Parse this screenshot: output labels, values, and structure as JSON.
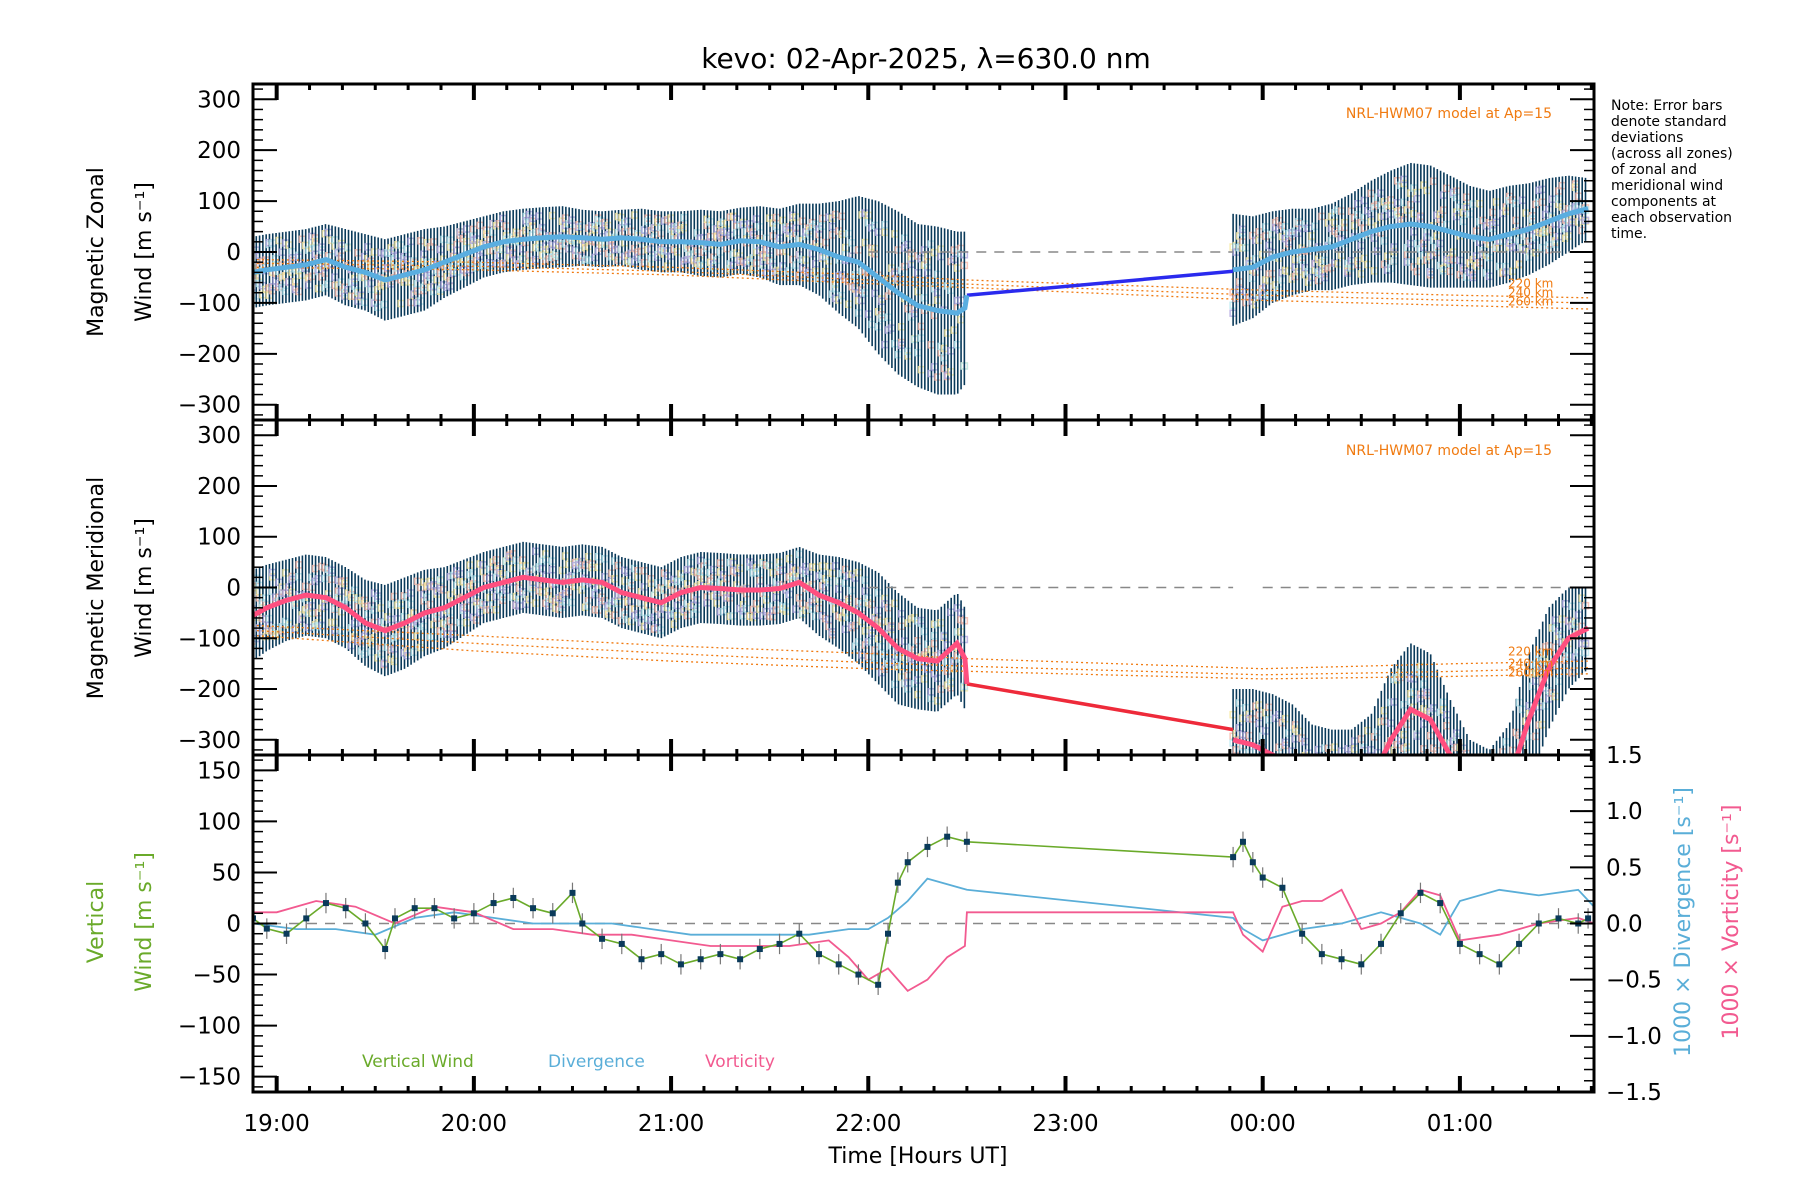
{
  "chart_data": {
    "type": "line",
    "title": "kevo: 02-Apr-2025, λ=630.0 nm",
    "xlabel": "Time [Hours UT]",
    "x_ticks": [
      "19:00",
      "20:00",
      "21:00",
      "22:00",
      "23:00",
      "00:00",
      "01:00"
    ],
    "x_tick_hours": [
      19,
      20,
      21,
      22,
      23,
      24,
      25
    ],
    "xlim_hours": [
      18.88,
      25.68
    ],
    "note": [
      "Note: Error bars",
      "denote standard",
      "deviations",
      "(across all zones)",
      "of zonal and",
      "meridional wind",
      "components at",
      "each observation",
      "time."
    ],
    "colors": {
      "zonal_line": "#5aaee0",
      "zonal_gap_line": "#2a2aee",
      "meridional_line": "#ff4f7f",
      "meridional_gap_line": "#ee2a3a",
      "error_bar": "#0a3a5a",
      "model": "#f07a10",
      "vertical_wind": "#6aaa2a",
      "divergence": "#5aaed8",
      "vorticity": "#f25a90",
      "zero_line": "#888888",
      "scatter_purple": "#b0a8e0",
      "scatter_pink": "#f8b8a8",
      "scatter_yellow": "#f8e8a0"
    },
    "panels": [
      {
        "name": "zonal",
        "ylabel_line1": "Magnetic Zonal",
        "ylabel_line2": "Wind [m s⁻¹]",
        "ylim": [
          -330,
          330
        ],
        "yticks": [
          300,
          200,
          100,
          0,
          -100,
          -200,
          -300
        ],
        "ytick_labels": [
          "300",
          "200",
          "100",
          "0",
          "−100",
          "−200",
          "−300"
        ],
        "model_label": "NRL-HWM07 model at Ap=15",
        "model_altitudes": [
          "220 km",
          "240 km",
          "260 km"
        ],
        "model_series": [
          {
            "label": "220 km",
            "x": [
              18.9,
              20.0,
              21.0,
              22.0,
              22.5,
              24.0,
              25.0,
              25.65
            ],
            "y": [
              -15,
              -20,
              -30,
              -45,
              -55,
              -75,
              -85,
              -90
            ]
          },
          {
            "label": "240 km",
            "x": [
              18.9,
              20.0,
              21.0,
              22.0,
              22.5,
              24.0,
              25.0,
              25.65
            ],
            "y": [
              -22,
              -28,
              -38,
              -55,
              -63,
              -85,
              -95,
              -100
            ]
          },
          {
            "label": "260 km",
            "x": [
              18.9,
              20.0,
              21.0,
              22.0,
              22.5,
              24.0,
              25.0,
              25.65
            ],
            "y": [
              -30,
              -35,
              -45,
              -62,
              -70,
              -95,
              -105,
              -112
            ]
          }
        ],
        "series": {
          "name": "Zonal wind",
          "x": [
            18.88,
            18.95,
            19.05,
            19.15,
            19.25,
            19.35,
            19.45,
            19.55,
            19.65,
            19.75,
            19.85,
            19.95,
            20.05,
            20.15,
            20.25,
            20.35,
            20.45,
            20.55,
            20.65,
            20.75,
            20.85,
            20.95,
            21.05,
            21.15,
            21.25,
            21.35,
            21.45,
            21.55,
            21.65,
            21.75,
            21.85,
            21.95,
            22.05,
            22.15,
            22.25,
            22.35,
            22.45,
            22.49,
            22.5
          ],
          "y": [
            -40,
            -35,
            -30,
            -25,
            -15,
            -30,
            -40,
            -55,
            -45,
            -35,
            -20,
            -5,
            10,
            20,
            25,
            28,
            30,
            28,
            25,
            28,
            25,
            20,
            20,
            18,
            15,
            22,
            20,
            10,
            15,
            5,
            -10,
            -20,
            -50,
            -80,
            -105,
            -115,
            -120,
            -110,
            -85
          ],
          "err": [
            70,
            70,
            70,
            70,
            70,
            75,
            75,
            80,
            80,
            80,
            70,
            65,
            60,
            60,
            60,
            60,
            60,
            55,
            55,
            55,
            60,
            60,
            60,
            65,
            65,
            65,
            70,
            75,
            80,
            90,
            110,
            130,
            150,
            160,
            160,
            165,
            160,
            150,
            140
          ]
        },
        "series_b": {
          "x": [
            23.85,
            23.95,
            24.05,
            24.15,
            24.25,
            24.35,
            24.45,
            24.55,
            24.65,
            24.75,
            24.85,
            24.95,
            25.05,
            25.15,
            25.25,
            25.35,
            25.45,
            25.55,
            25.65
          ],
          "y": [
            -35,
            -30,
            -10,
            0,
            5,
            10,
            25,
            40,
            50,
            55,
            50,
            40,
            30,
            25,
            35,
            45,
            60,
            75,
            85
          ],
          "err": [
            110,
            100,
            90,
            85,
            80,
            85,
            90,
            100,
            110,
            120,
            120,
            110,
            100,
            95,
            95,
            90,
            85,
            75,
            60
          ]
        },
        "gap_line": {
          "x": [
            22.5,
            23.85
          ],
          "y": [
            -85,
            -38
          ]
        }
      },
      {
        "name": "meridional",
        "ylabel_line1": "Magnetic Meridional",
        "ylabel_line2": "Wind [m s⁻¹]",
        "ylim": [
          -330,
          330
        ],
        "yticks": [
          300,
          200,
          100,
          0,
          -100,
          -200,
          -300
        ],
        "ytick_labels": [
          "300",
          "200",
          "100",
          "0",
          "−100",
          "−200",
          "−300"
        ],
        "model_label": "NRL-HWM07 model at Ap=15",
        "model_altitudes": [
          "220 km",
          "240 km",
          "260 km"
        ],
        "model_series": [
          {
            "label": "220 km",
            "x": [
              18.9,
              20.0,
              21.0,
              22.0,
              22.5,
              24.0,
              25.0,
              25.65
            ],
            "y": [
              -75,
              -95,
              -115,
              -130,
              -140,
              -160,
              -150,
              -145
            ]
          },
          {
            "label": "240 km",
            "x": [
              18.9,
              20.0,
              21.0,
              22.0,
              22.5,
              24.0,
              25.0,
              25.65
            ],
            "y": [
              -85,
              -110,
              -130,
              -148,
              -155,
              -172,
              -165,
              -158
            ]
          },
          {
            "label": "260 km",
            "x": [
              18.9,
              20.0,
              21.0,
              22.0,
              22.5,
              24.0,
              25.0,
              25.65
            ],
            "y": [
              -95,
              -125,
              -145,
              -160,
              -165,
              -180,
              -175,
              -170
            ]
          }
        ],
        "series": {
          "name": "Meridional wind",
          "x": [
            18.88,
            18.95,
            19.05,
            19.15,
            19.25,
            19.35,
            19.45,
            19.55,
            19.65,
            19.75,
            19.85,
            19.95,
            20.05,
            20.15,
            20.25,
            20.35,
            20.45,
            20.55,
            20.65,
            20.75,
            20.85,
            20.95,
            21.05,
            21.15,
            21.25,
            21.35,
            21.45,
            21.55,
            21.65,
            21.75,
            21.85,
            21.95,
            22.05,
            22.15,
            22.25,
            22.35,
            22.45,
            22.49,
            22.5
          ],
          "y": [
            -55,
            -40,
            -25,
            -15,
            -20,
            -40,
            -70,
            -85,
            -70,
            -50,
            -40,
            -20,
            0,
            10,
            20,
            15,
            10,
            15,
            10,
            -10,
            -20,
            -30,
            -10,
            0,
            -2,
            -5,
            -5,
            -2,
            10,
            -15,
            -30,
            -50,
            -80,
            -120,
            -140,
            -145,
            -110,
            -140,
            -190
          ],
          "err": [
            90,
            85,
            80,
            80,
            80,
            80,
            85,
            90,
            90,
            85,
            80,
            75,
            70,
            70,
            70,
            70,
            70,
            70,
            70,
            70,
            70,
            70,
            70,
            70,
            70,
            70,
            70,
            70,
            70,
            80,
            90,
            100,
            110,
            110,
            100,
            100,
            100,
            100,
            100
          ]
        },
        "series_b": {
          "x": [
            23.85,
            23.95,
            24.05,
            24.15,
            24.25,
            24.35,
            24.45,
            24.55,
            24.65,
            24.75,
            24.85,
            24.95,
            25.05,
            25.15,
            25.25,
            25.35,
            25.45,
            25.55,
            25.65
          ],
          "y": [
            -300,
            -310,
            -330,
            -350,
            -380,
            -390,
            -390,
            -380,
            -300,
            -240,
            -260,
            -330,
            -400,
            -420,
            -380,
            -260,
            -160,
            -100,
            -80
          ],
          "err": [
            100,
            110,
            120,
            120,
            110,
            110,
            110,
            130,
            140,
            130,
            130,
            110,
            100,
            100,
            110,
            130,
            120,
            100,
            80
          ]
        },
        "gap_line": {
          "x": [
            22.5,
            23.85
          ],
          "y": [
            -190,
            -280
          ]
        }
      },
      {
        "name": "vertical",
        "ylabel_line1": "Vertical",
        "ylabel_line2": "Wind [m s⁻¹]",
        "ylim": [
          -165,
          165
        ],
        "yticks": [
          150,
          100,
          50,
          0,
          -50,
          -100,
          -150
        ],
        "ytick_labels": [
          "150",
          "100",
          "50",
          "0",
          "−50",
          "−100",
          "−150"
        ],
        "right_ylim": [
          -1.5,
          1.5
        ],
        "right_yticks": [
          1.5,
          1.0,
          0.5,
          0.0,
          -0.5,
          -1.0,
          -1.5
        ],
        "right_ytick_labels": [
          "1.5",
          "1.0",
          "0.5",
          "0.0",
          "−0.5",
          "−1.0",
          "−1.5"
        ],
        "right_ylabel_div": "1000 × Divergence [s⁻¹]",
        "right_ylabel_vort": "1000 × Vorticity [s⁻¹]",
        "legend": [
          "Vertical Wind",
          "Divergence",
          "Vorticity"
        ],
        "vertical_wind": {
          "x": [
            18.88,
            18.95,
            19.05,
            19.15,
            19.25,
            19.35,
            19.45,
            19.55,
            19.6,
            19.7,
            19.8,
            19.9,
            20.0,
            20.1,
            20.2,
            20.3,
            20.4,
            20.5,
            20.55,
            20.65,
            20.75,
            20.85,
            20.95,
            21.05,
            21.15,
            21.25,
            21.35,
            21.45,
            21.55,
            21.65,
            21.75,
            21.85,
            21.95,
            22.05,
            22.1,
            22.15,
            22.2,
            22.3,
            22.4,
            22.5
          ],
          "y": [
            5,
            -5,
            -10,
            5,
            20,
            15,
            0,
            -25,
            5,
            15,
            15,
            5,
            10,
            20,
            25,
            15,
            10,
            30,
            0,
            -15,
            -20,
            -35,
            -30,
            -40,
            -35,
            -30,
            -35,
            -25,
            -20,
            -10,
            -30,
            -40,
            -50,
            -60,
            -10,
            40,
            60,
            75,
            85,
            80
          ],
          "x_b": [
            23.85,
            23.9,
            23.95,
            24.0,
            24.1,
            24.2,
            24.3,
            24.4,
            24.5,
            24.6,
            24.7,
            24.8,
            24.9,
            25.0,
            25.1,
            25.2,
            25.3,
            25.4,
            25.5,
            25.6,
            25.65
          ],
          "y_b": [
            65,
            80,
            60,
            45,
            35,
            -10,
            -30,
            -35,
            -40,
            -20,
            10,
            30,
            20,
            -20,
            -30,
            -40,
            -20,
            0,
            5,
            0,
            5
          ]
        },
        "divergence": {
          "x": [
            18.88,
            19.1,
            19.3,
            19.5,
            19.7,
            19.9,
            20.1,
            20.3,
            20.5,
            20.7,
            20.9,
            21.1,
            21.3,
            21.5,
            21.7,
            21.9,
            22.0,
            22.1,
            22.2,
            22.3,
            22.5,
            23.85,
            23.9,
            24.0,
            24.2,
            24.4,
            24.6,
            24.8,
            24.9,
            25.0,
            25.2,
            25.4,
            25.6,
            25.68
          ],
          "y": [
            0.0,
            -0.05,
            -0.05,
            -0.1,
            0.05,
            0.1,
            0.05,
            0.0,
            0.0,
            0.0,
            -0.05,
            -0.1,
            -0.1,
            -0.1,
            -0.1,
            -0.05,
            -0.05,
            0.05,
            0.2,
            0.4,
            0.3,
            0.05,
            -0.05,
            -0.15,
            -0.05,
            0.0,
            0.1,
            0.0,
            -0.1,
            0.2,
            0.3,
            0.25,
            0.3,
            0.15
          ]
        },
        "vorticity": {
          "x": [
            18.88,
            19.0,
            19.2,
            19.4,
            19.6,
            19.8,
            20.0,
            20.2,
            20.4,
            20.6,
            20.8,
            21.0,
            21.2,
            21.4,
            21.6,
            21.8,
            21.9,
            22.0,
            22.1,
            22.2,
            22.3,
            22.4,
            22.49,
            22.5,
            23.85,
            23.9,
            24.0,
            24.1,
            24.2,
            24.3,
            24.4,
            24.5,
            24.6,
            24.7,
            24.8,
            24.9,
            25.0,
            25.2,
            25.4,
            25.6,
            25.68
          ],
          "y": [
            0.1,
            0.1,
            0.2,
            0.15,
            0.0,
            0.15,
            0.1,
            -0.05,
            -0.05,
            -0.1,
            -0.1,
            -0.15,
            -0.2,
            -0.2,
            -0.2,
            -0.15,
            -0.3,
            -0.5,
            -0.4,
            -0.6,
            -0.5,
            -0.3,
            -0.2,
            0.1,
            0.1,
            -0.1,
            -0.25,
            0.15,
            0.2,
            0.2,
            0.3,
            -0.05,
            0.0,
            0.1,
            0.3,
            0.25,
            -0.15,
            -0.1,
            0.0,
            0.05,
            0.0
          ]
        }
      }
    ]
  }
}
